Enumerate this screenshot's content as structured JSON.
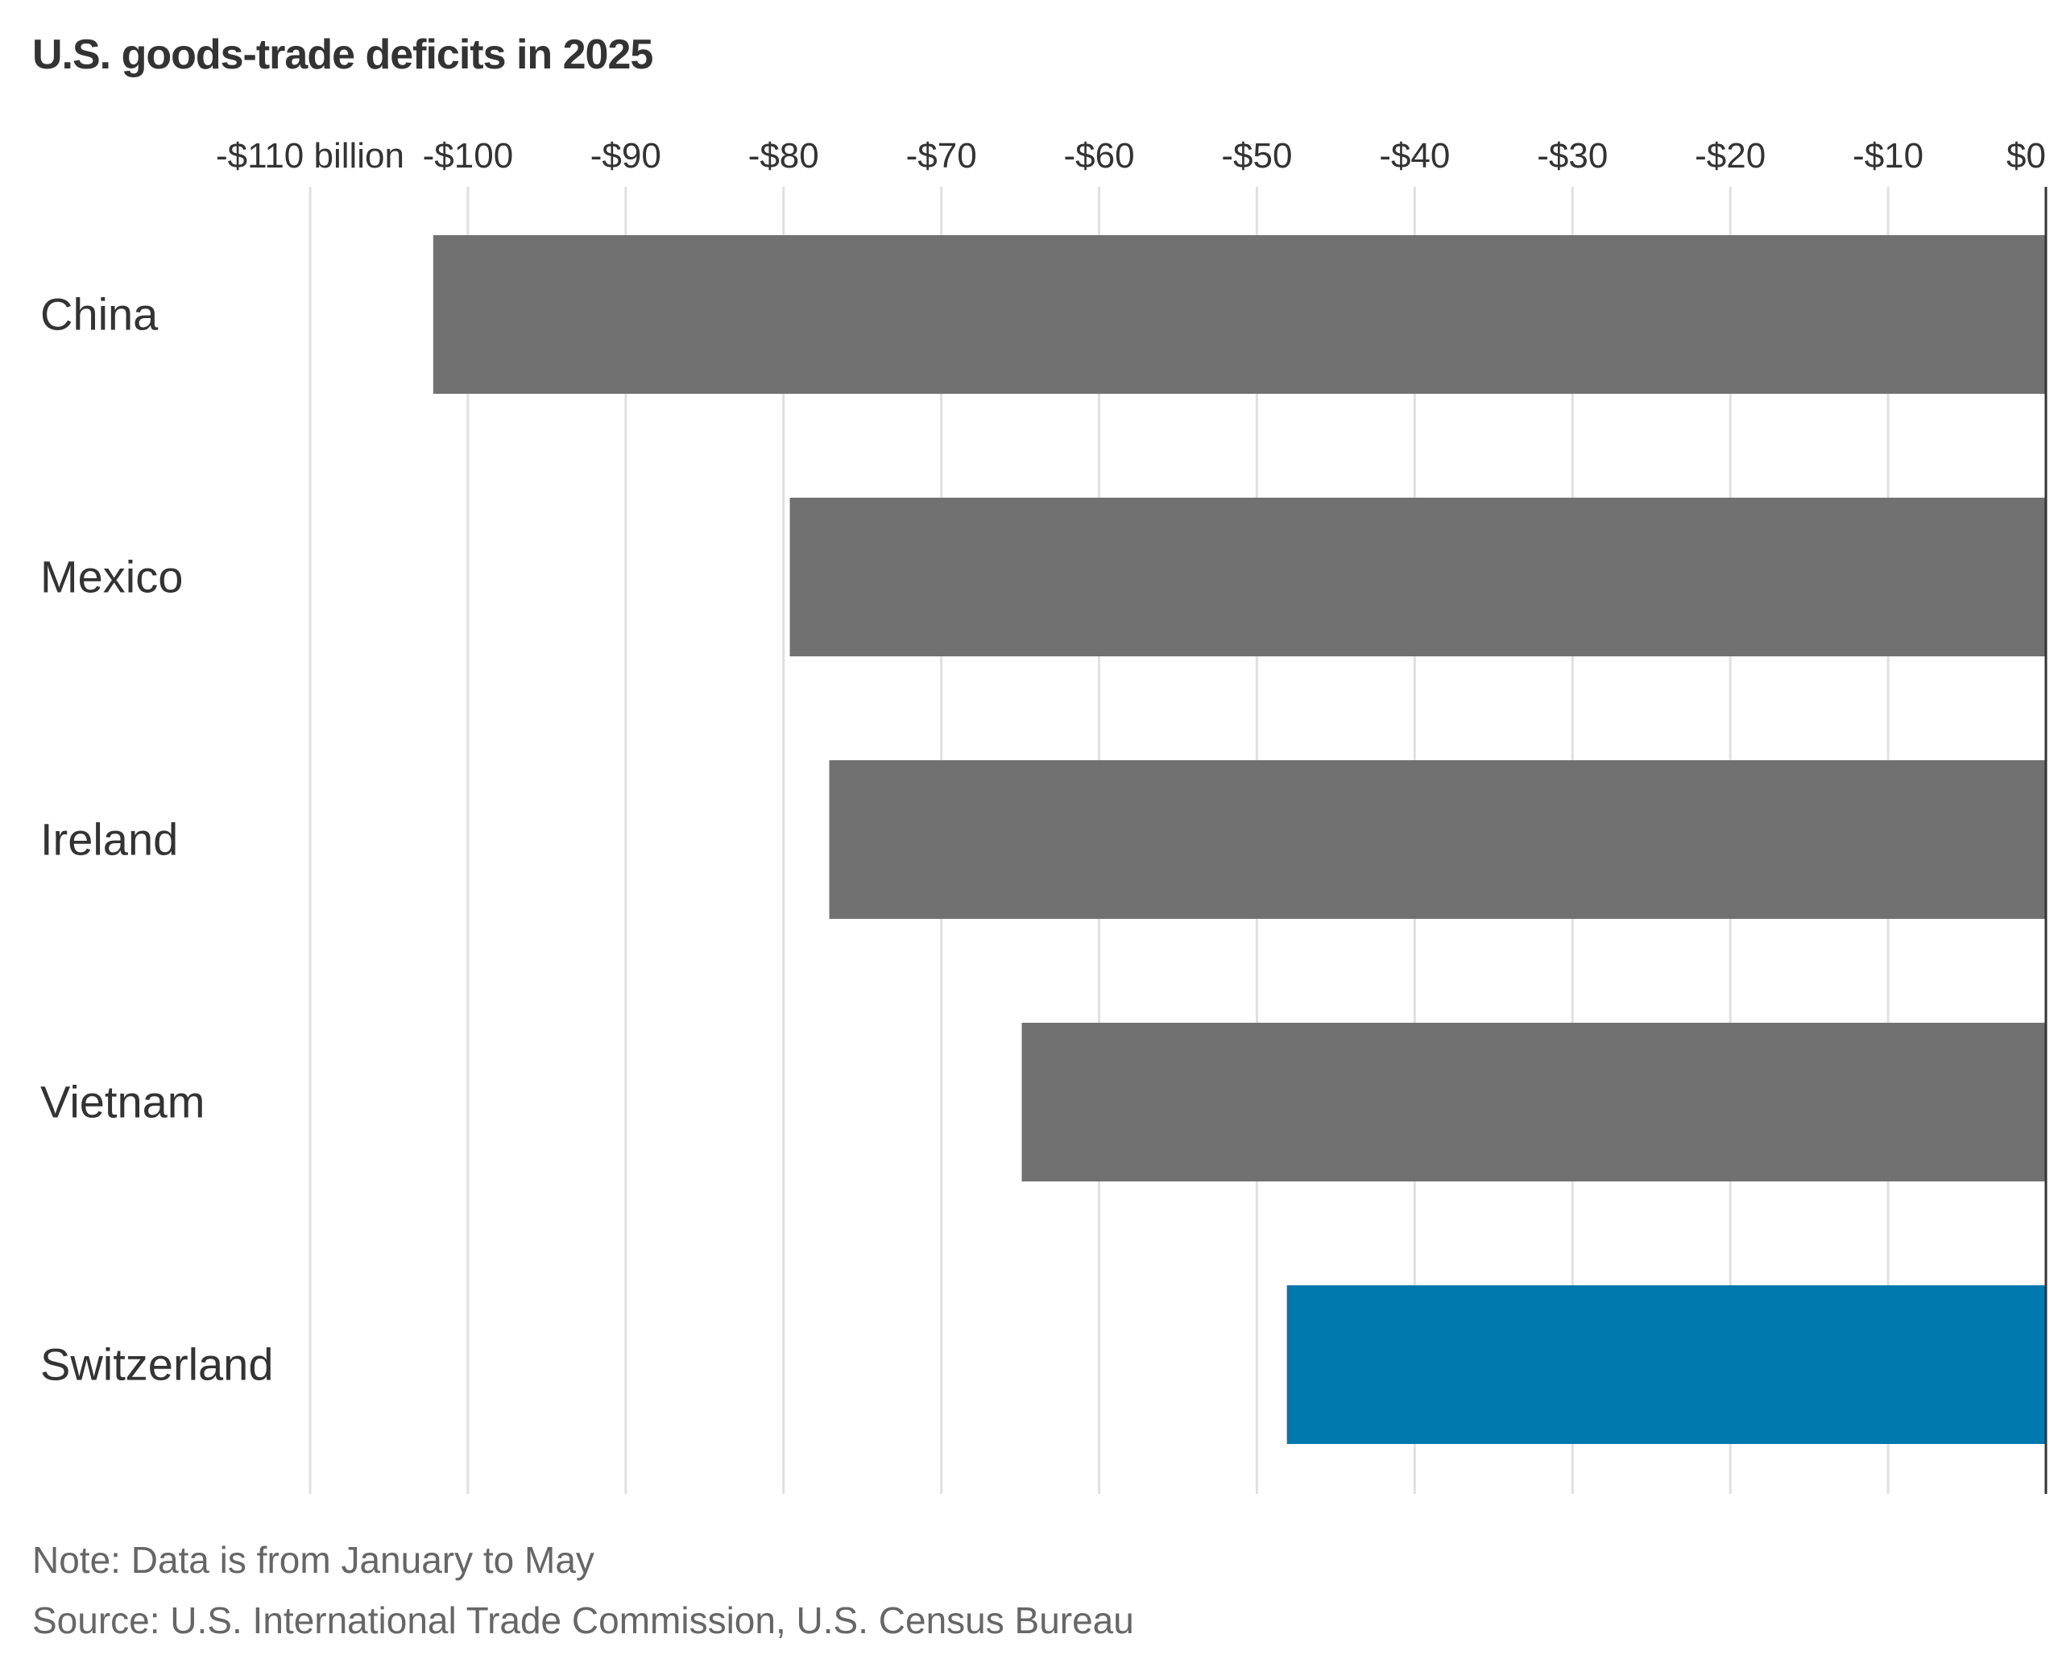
{
  "chart_data": {
    "type": "bar",
    "orientation": "horizontal",
    "title": "U.S. goods-trade deficits in 2025",
    "categories": [
      "China",
      "Mexico",
      "Ireland",
      "Vietnam",
      "Switzerland"
    ],
    "values": [
      -102.2,
      -79.6,
      -77.1,
      -64.9,
      -48.1
    ],
    "highlight": "Switzerland",
    "xlim": [
      -110,
      0
    ],
    "ticks": [
      -110,
      -100,
      -90,
      -80,
      -70,
      -60,
      -50,
      -40,
      -30,
      -20,
      -10,
      0
    ],
    "tick_labels": [
      "-$110 billion",
      "-$100",
      "-$90",
      "-$80",
      "-$70",
      "-$60",
      "-$50",
      "-$40",
      "-$30",
      "-$20",
      "-$10",
      "$0"
    ],
    "xlabel": "",
    "ylabel": "",
    "grid": true,
    "colors": {
      "bar": "#717171",
      "highlight": "#0077ad",
      "grid": "#e0e0e0",
      "zero_line": "#333333"
    }
  },
  "note": "Note: Data is from January to May",
  "source": "Source: U.S. International Trade Commission, U.S. Census Bureau"
}
